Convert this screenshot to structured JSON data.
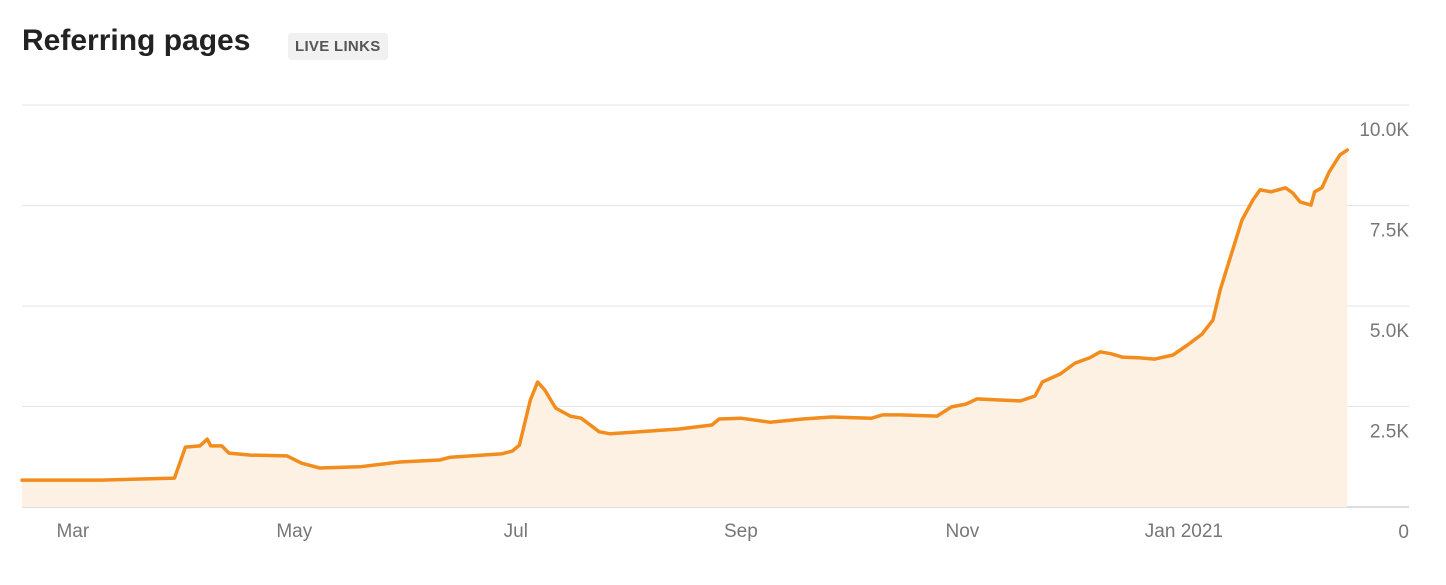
{
  "chart_data": {
    "type": "line",
    "title": "Referring pages",
    "badge": "LIVE LINKS",
    "x": [
      0,
      22,
      42,
      45,
      49,
      51,
      52,
      55,
      57,
      63,
      73,
      77,
      82,
      93,
      104,
      115,
      118,
      132,
      135,
      137,
      140,
      142,
      144,
      147,
      151,
      154,
      159,
      162,
      170,
      181,
      190,
      192,
      198,
      206,
      215,
      223,
      234,
      237,
      242,
      252,
      256,
      260,
      263,
      270,
      275,
      279,
      281,
      286,
      290,
      294,
      297,
      300,
      303,
      308,
      312,
      317,
      321,
      325,
      328,
      330,
      333,
      336,
      339,
      341,
      344,
      348,
      350,
      352,
      355,
      356,
      358,
      360,
      363,
      365
    ],
    "series": [
      {
        "name": "Referring pages",
        "color": "#f28c1c",
        "values": [
          670,
          670,
          720,
          1490,
          1520,
          1690,
          1520,
          1520,
          1340,
          1290,
          1270,
          1090,
          970,
          1000,
          1120,
          1170,
          1240,
          1320,
          1390,
          1540,
          2660,
          3110,
          2910,
          2460,
          2260,
          2210,
          1870,
          1820,
          1870,
          1940,
          2040,
          2190,
          2210,
          2110,
          2190,
          2240,
          2210,
          2290,
          2290,
          2260,
          2490,
          2560,
          2690,
          2660,
          2640,
          2760,
          3110,
          3310,
          3580,
          3710,
          3860,
          3810,
          3730,
          3710,
          3680,
          3780,
          4030,
          4300,
          4650,
          5400,
          6270,
          7140,
          7640,
          7890,
          7840,
          7940,
          7810,
          7590,
          7510,
          7840,
          7940,
          8330,
          8760,
          8880
        ]
      }
    ],
    "xlim": [
      0,
      382
    ],
    "xticks": [
      {
        "value": 14,
        "label": "Mar"
      },
      {
        "value": 75,
        "label": "May"
      },
      {
        "value": 136,
        "label": "Jul"
      },
      {
        "value": 198,
        "label": "Sep"
      },
      {
        "value": 259,
        "label": "Nov"
      },
      {
        "value": 320,
        "label": "Jan 2021"
      }
    ],
    "ylim": [
      0,
      10000
    ],
    "yticks": [
      0,
      {
        "value": 2500,
        "label": "2.5K"
      },
      {
        "value": 5000,
        "label": "5.0K"
      },
      {
        "value": 7500,
        "label": "7.5K"
      },
      {
        "value": 10000,
        "label": "10.0K"
      }
    ],
    "grid": true,
    "area": true,
    "fill_color": "#fdf1e3"
  }
}
